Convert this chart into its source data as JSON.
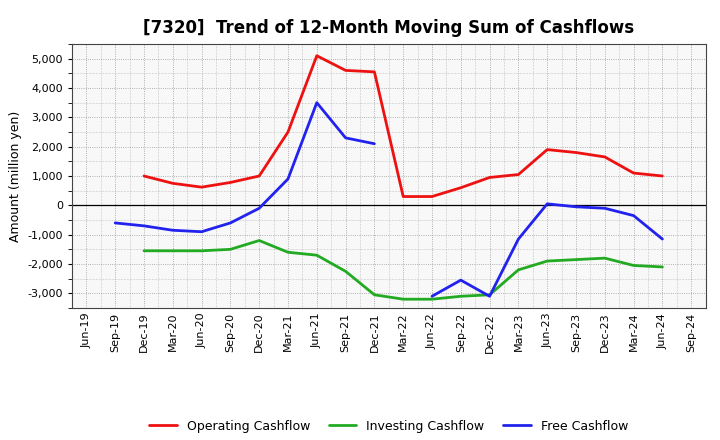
{
  "title": "[7320]  Trend of 12-Month Moving Sum of Cashflows",
  "ylabel": "Amount (million yen)",
  "x_labels": [
    "Jun-19",
    "Sep-19",
    "Dec-19",
    "Mar-20",
    "Jun-20",
    "Sep-20",
    "Dec-20",
    "Mar-21",
    "Jun-21",
    "Sep-21",
    "Dec-21",
    "Mar-22",
    "Jun-22",
    "Sep-22",
    "Dec-22",
    "Mar-23",
    "Jun-23",
    "Sep-23",
    "Dec-23",
    "Mar-24",
    "Jun-24",
    "Sep-24"
  ],
  "operating": [
    null,
    null,
    1000,
    750,
    620,
    780,
    1000,
    2500,
    5100,
    4600,
    4550,
    300,
    300,
    600,
    950,
    1050,
    1900,
    1800,
    1650,
    1100,
    1000,
    null
  ],
  "investing": [
    null,
    null,
    -1550,
    -1550,
    -1550,
    -1500,
    -1200,
    -1600,
    -1700,
    -2250,
    -3050,
    -3200,
    -3200,
    -3100,
    -3050,
    -2200,
    -1900,
    -1850,
    -1800,
    -2050,
    -2100,
    null
  ],
  "free": [
    null,
    -600,
    -700,
    -850,
    -900,
    -600,
    -100,
    900,
    3500,
    2300,
    2100,
    null,
    -3100,
    -2550,
    -3100,
    -1150,
    50,
    -50,
    -100,
    -350,
    -1150,
    null
  ],
  "ylim": [
    -3500,
    5500
  ],
  "yticks": [
    -3000,
    -2000,
    -1000,
    0,
    1000,
    2000,
    3000,
    4000,
    5000
  ],
  "operating_color": "#ee1111",
  "investing_color": "#22aa22",
  "free_color": "#2222ee",
  "bg_color": "#ffffff",
  "plot_bg_color": "#f8f8f8",
  "grid_color": "#999999",
  "linewidth": 2.0,
  "title_fontsize": 12,
  "label_fontsize": 8,
  "ylabel_fontsize": 9,
  "legend_fontsize": 9
}
